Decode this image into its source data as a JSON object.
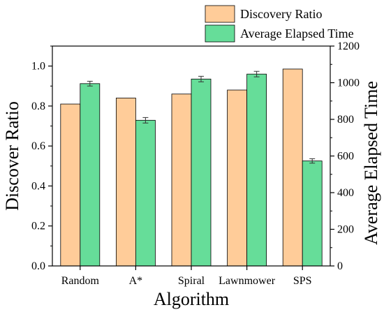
{
  "chart_data": {
    "type": "bar",
    "xlabel": "Algorithm",
    "ylabel": "Discover Ratio",
    "y2label": "Average Elapsed Time",
    "categories": [
      "Random",
      "A*",
      "Spiral",
      "Lawnmower",
      "SPS"
    ],
    "ylim": [
      0,
      1.1
    ],
    "y2lim": [
      0,
      1200
    ],
    "yticks": [
      "0.0",
      "0.2",
      "0.4",
      "0.6",
      "0.8",
      "1.0"
    ],
    "y2ticks": [
      "0",
      "200",
      "400",
      "600",
      "800",
      "1000",
      "1200"
    ],
    "legend_position": "top-right",
    "series": [
      {
        "name": "Discovery Ratio",
        "axis": "left",
        "color": "#FFCC99",
        "values": [
          0.81,
          0.84,
          0.86,
          0.88,
          0.985
        ]
      },
      {
        "name": "Average Elapsed Time",
        "axis": "right",
        "color": "#66DD99",
        "values": [
          995,
          795,
          1020,
          1047,
          573
        ],
        "errors": [
          13,
          15,
          15,
          15,
          12
        ]
      }
    ]
  }
}
